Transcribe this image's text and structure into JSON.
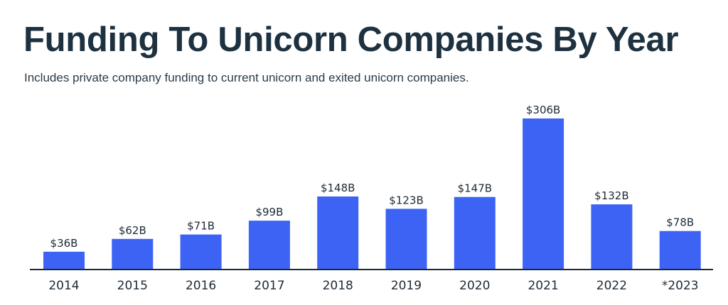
{
  "chart_data": {
    "type": "bar",
    "title": "Funding To Unicorn Companies By Year",
    "subtitle": "Includes private company funding to current unicorn and exited unicorn companies.",
    "categories": [
      "2014",
      "2015",
      "2016",
      "2017",
      "2018",
      "2019",
      "2020",
      "2021",
      "2022",
      "*2023"
    ],
    "values": [
      36,
      62,
      71,
      99,
      148,
      123,
      147,
      306,
      132,
      78
    ],
    "value_labels": [
      "$36B",
      "$62B",
      "$71B",
      "$99B",
      "$148B",
      "$123B",
      "$147B",
      "$306B",
      "$132B",
      "$78B"
    ],
    "unit": "$B",
    "xlabel": "",
    "ylabel": "",
    "ylim": [
      0,
      306
    ],
    "grid": false,
    "legend": "none",
    "colors": {
      "bar": "#3d63f5",
      "axis": "#1d2a35",
      "title": "#1d3140"
    }
  }
}
